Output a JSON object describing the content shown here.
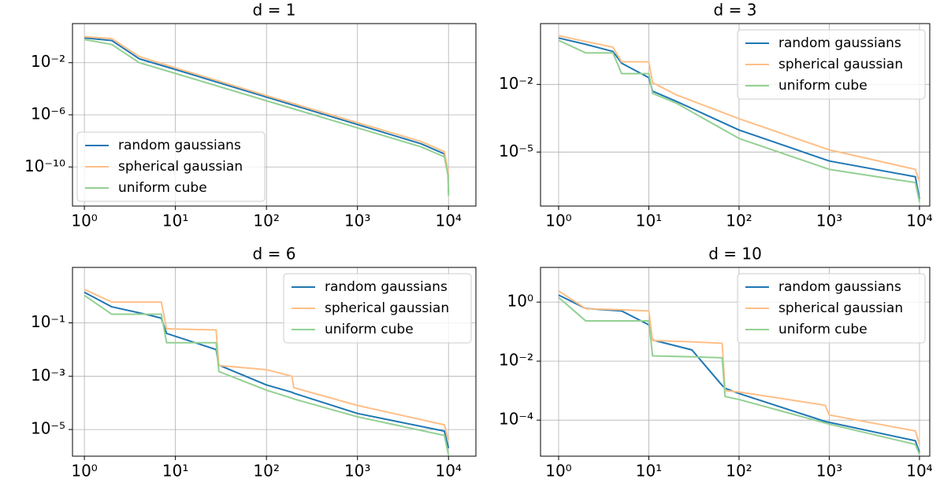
{
  "chart_data": [
    {
      "type": "line",
      "title": "d = 1",
      "xscale": "log",
      "yscale": "log",
      "grid": true,
      "legend": "lower left",
      "xlim": [
        0.74,
        20000
      ],
      "ylim": [
        1e-13,
        10
      ],
      "xticks": [
        {
          "value": 1,
          "label": "10⁰"
        },
        {
          "value": 10,
          "label": "10¹"
        },
        {
          "value": 100,
          "label": "10²"
        },
        {
          "value": 1000,
          "label": "10³"
        },
        {
          "value": 10000,
          "label": "10⁴"
        }
      ],
      "yticks": [
        {
          "value": 0.01,
          "label": "10⁻²"
        },
        {
          "value": 1e-06,
          "label": "10⁻⁶"
        },
        {
          "value": 1e-10,
          "label": "10⁻¹⁰"
        }
      ],
      "x": [
        1,
        2,
        4,
        10,
        100,
        1000,
        5000,
        9000,
        9900,
        10000
      ],
      "series": [
        {
          "name": "random gaussians",
          "color": "#1f77b4",
          "values": [
            0.8,
            0.5,
            0.02,
            0.003,
            2.3e-05,
            1.8e-07,
            6e-09,
            1e-09,
            3e-11,
            1e-12
          ]
        },
        {
          "name": "spherical gaussian",
          "color": "#ffbf87",
          "values": [
            1.0,
            0.7,
            0.03,
            0.004,
            3e-05,
            2.5e-07,
            9e-09,
            1.5e-09,
            5e-11,
            1.5e-12
          ]
        },
        {
          "name": "uniform cube",
          "color": "#93d093",
          "values": [
            0.6,
            0.25,
            0.01,
            0.0015,
            1.2e-05,
            1e-07,
            3.5e-09,
            6e-10,
            2e-11,
            6e-13
          ]
        }
      ]
    },
    {
      "type": "line",
      "title": "d = 3",
      "xscale": "log",
      "yscale": "log",
      "grid": true,
      "legend": "upper right",
      "xlim": [
        0.63,
        13000
      ],
      "ylim": [
        4e-08,
        5
      ],
      "xticks": [
        {
          "value": 1,
          "label": "10⁰"
        },
        {
          "value": 10,
          "label": "10¹"
        },
        {
          "value": 100,
          "label": "10²"
        },
        {
          "value": 1000,
          "label": "10³"
        },
        {
          "value": 10000,
          "label": "10⁴"
        }
      ],
      "yticks": [
        {
          "value": 0.01,
          "label": "10⁻²"
        },
        {
          "value": 1e-05,
          "label": "10⁻⁵"
        }
      ],
      "x": [
        1,
        2,
        4,
        5,
        10,
        11,
        20,
        100,
        1000,
        9000,
        10000
      ],
      "series": [
        {
          "name": "random gaussians",
          "color": "#1f77b4",
          "values": [
            1.15,
            0.6,
            0.29,
            0.087,
            0.02,
            0.005,
            0.0018,
            9.5e-05,
            4e-06,
            8e-07,
            8e-08
          ]
        },
        {
          "name": "spherical gaussian",
          "color": "#ffbf87",
          "values": [
            1.45,
            0.8,
            0.45,
            0.1,
            0.1,
            0.012,
            0.0035,
            0.0003,
            1.25e-05,
            1.7e-06,
            5e-07
          ]
        },
        {
          "name": "uniform cube",
          "color": "#93d093",
          "values": [
            0.9,
            0.25,
            0.25,
            0.03,
            0.03,
            0.004,
            0.0015,
            4e-05,
            1.7e-06,
            4.4e-07,
            6e-08
          ]
        }
      ]
    },
    {
      "type": "line",
      "title": "d = 6",
      "xscale": "log",
      "yscale": "log",
      "grid": true,
      "legend": "upper right",
      "xlim": [
        0.74,
        20000
      ],
      "ylim": [
        1e-06,
        12
      ],
      "xticks": [
        {
          "value": 1,
          "label": "10⁰"
        },
        {
          "value": 10,
          "label": "10¹"
        },
        {
          "value": 100,
          "label": "10²"
        },
        {
          "value": 1000,
          "label": "10³"
        },
        {
          "value": 10000,
          "label": "10⁴"
        }
      ],
      "yticks": [
        {
          "value": 0.1,
          "label": "10⁻¹"
        },
        {
          "value": 0.001,
          "label": "10⁻³"
        },
        {
          "value": 1e-05,
          "label": "10⁻⁵"
        }
      ],
      "x": [
        1,
        2,
        5,
        7,
        8,
        28,
        30,
        100,
        190,
        200,
        1000,
        9000,
        10000
      ],
      "series": [
        {
          "name": "random gaussians",
          "color": "#1f77b4",
          "values": [
            1.4,
            0.4,
            0.2,
            0.15,
            0.04,
            0.01,
            0.0026,
            0.00047,
            0.00025,
            0.00023,
            4e-05,
            8.7e-06,
            2e-06
          ]
        },
        {
          "name": "spherical gaussian",
          "color": "#ffbf87",
          "values": [
            1.8,
            0.6,
            0.6,
            0.6,
            0.06,
            0.054,
            0.0025,
            0.00175,
            0.001,
            0.00037,
            8e-05,
            1.5e-05,
            4e-06
          ]
        },
        {
          "name": "uniform cube",
          "color": "#93d093",
          "values": [
            1.07,
            0.21,
            0.21,
            0.21,
            0.018,
            0.018,
            0.0015,
            0.0003,
            0.00015,
            0.00014,
            3e-05,
            6e-06,
            1.1e-06
          ]
        }
      ]
    },
    {
      "type": "line",
      "title": "d = 10",
      "xscale": "log",
      "yscale": "log",
      "grid": true,
      "legend": "upper right",
      "xlim": [
        0.63,
        13000
      ],
      "ylim": [
        6e-06,
        15
      ],
      "xticks": [
        {
          "value": 1,
          "label": "10⁰"
        },
        {
          "value": 10,
          "label": "10¹"
        },
        {
          "value": 100,
          "label": "10²"
        },
        {
          "value": 1000,
          "label": "10³"
        },
        {
          "value": 10000,
          "label": "10⁴"
        }
      ],
      "yticks": [
        {
          "value": 1,
          "label": "10⁰"
        },
        {
          "value": 0.01,
          "label": "10⁻²"
        },
        {
          "value": 0.0001,
          "label": "10⁻⁴"
        }
      ],
      "x": [
        1,
        2,
        5,
        10,
        11,
        30,
        65,
        70,
        100,
        900,
        1000,
        9000,
        10000
      ],
      "series": [
        {
          "name": "random gaussians",
          "color": "#1f77b4",
          "values": [
            1.74,
            0.61,
            0.5,
            0.17,
            0.052,
            0.024,
            0.0015,
            0.0012,
            0.0008,
            9e-05,
            8.4e-05,
            2e-05,
            8e-06
          ]
        },
        {
          "name": "spherical gaussian",
          "color": "#ffbf87",
          "values": [
            2.4,
            0.6,
            0.55,
            0.5,
            0.05,
            0.045,
            0.04,
            0.001,
            0.0009,
            0.00032,
            0.00015,
            4.3e-05,
            1.5e-05
          ]
        },
        {
          "name": "uniform cube",
          "color": "#93d093",
          "values": [
            1.44,
            0.23,
            0.23,
            0.23,
            0.015,
            0.014,
            0.013,
            0.00063,
            0.0005,
            8e-05,
            7.3e-05,
            1.5e-05,
            6.9e-06
          ]
        }
      ]
    }
  ]
}
